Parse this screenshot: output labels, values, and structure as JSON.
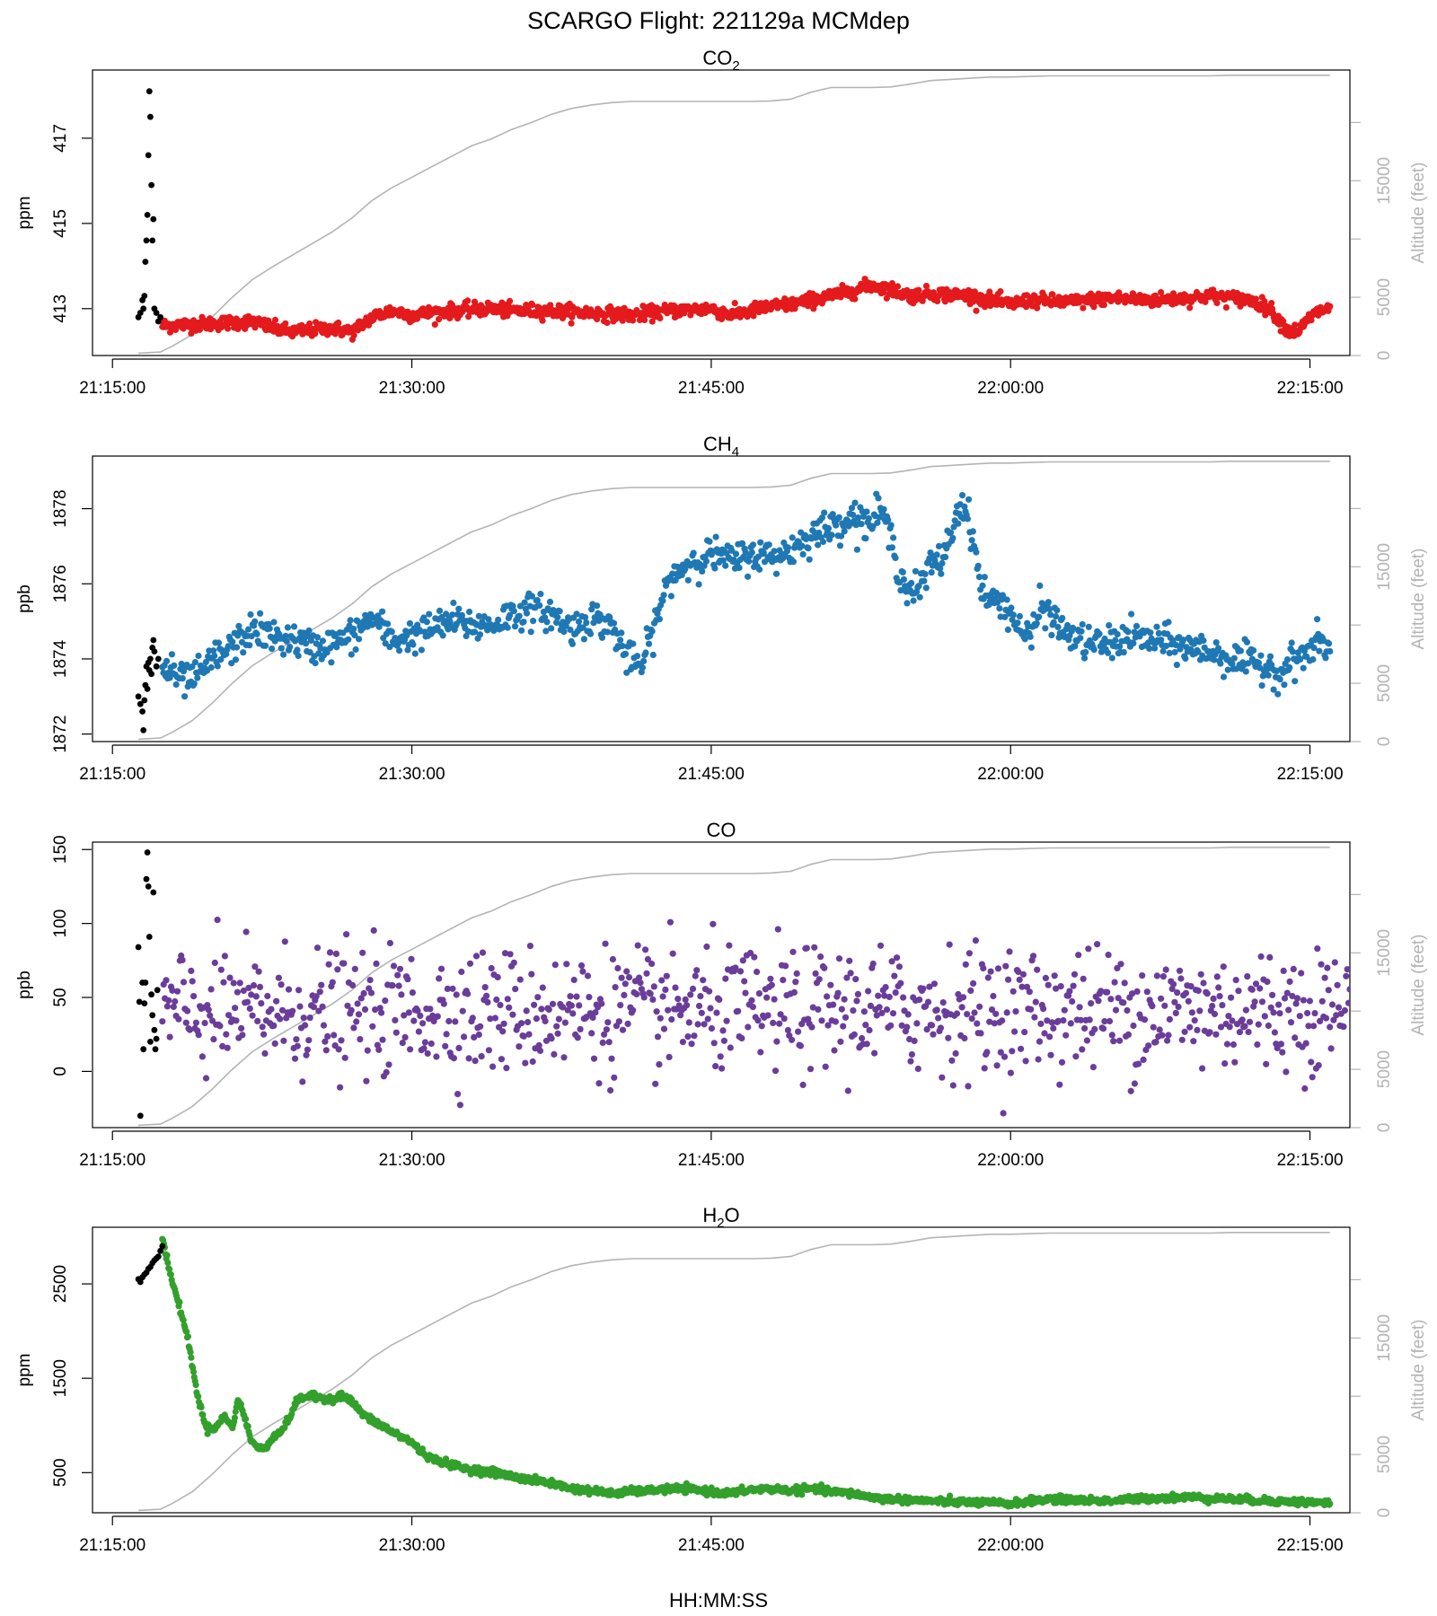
{
  "figure": {
    "title": "SCARGO Flight: 221129a  MCMdep",
    "xlabel": "HH:MM:SS"
  },
  "colors": {
    "axis": "#000000",
    "altitude": "#b4b4b4",
    "ground_points": "#000000"
  },
  "chart_data": [
    {
      "type": "scatter",
      "title_base": "CO",
      "title_sub": "2",
      "ylabel": "ppm",
      "ylim": [
        411.9,
        418.6
      ],
      "yticks": [
        413,
        415,
        417
      ],
      "y2label": "Altitude (feet)",
      "y2lim": [
        0,
        24500
      ],
      "y2ticks": [
        0,
        5000,
        15000
      ],
      "xlim_minutes": [
        -1,
        62
      ],
      "xticks": [
        "21:15:00",
        "21:30:00",
        "21:45:00",
        "22:00:00",
        "22:15:00"
      ],
      "xticks_minutes": [
        0,
        15,
        30,
        45,
        60
      ],
      "series_color": "#e41a1c",
      "ground": {
        "t": [
          1.3,
          1.4,
          1.5,
          1.55,
          1.6,
          1.65,
          1.7,
          1.75,
          1.8,
          1.85,
          1.9,
          1.95,
          2.0,
          2.05,
          2.1,
          2.2,
          2.3,
          2.4
        ],
        "y": [
          412.8,
          412.9,
          413.2,
          413.0,
          413.3,
          414.1,
          414.6,
          415.2,
          416.6,
          418.1,
          417.5,
          415.9,
          414.6,
          415.1,
          413.0,
          412.9,
          412.7,
          412.8
        ]
      },
      "main": {
        "anchors": [
          [
            2.5,
            412.6
          ],
          [
            5,
            412.65
          ],
          [
            7,
            412.7
          ],
          [
            8,
            412.55
          ],
          [
            9,
            412.45
          ],
          [
            10,
            412.5
          ],
          [
            11,
            412.55
          ],
          [
            12,
            412.45
          ],
          [
            13,
            412.8
          ],
          [
            14,
            412.95
          ],
          [
            15,
            412.85
          ],
          [
            17,
            412.95
          ],
          [
            19,
            413.0
          ],
          [
            20,
            412.95
          ],
          [
            22,
            412.95
          ],
          [
            24,
            412.9
          ],
          [
            26,
            412.85
          ],
          [
            28,
            412.95
          ],
          [
            30,
            413.0
          ],
          [
            31,
            412.85
          ],
          [
            33,
            413.05
          ],
          [
            34,
            413.1
          ],
          [
            35,
            413.2
          ],
          [
            36,
            413.3
          ],
          [
            37,
            413.4
          ],
          [
            38,
            413.55
          ],
          [
            39,
            413.45
          ],
          [
            40,
            413.3
          ],
          [
            41,
            413.35
          ],
          [
            43,
            413.3
          ],
          [
            44,
            413.2
          ],
          [
            45,
            413.1
          ],
          [
            46,
            413.2
          ],
          [
            48,
            413.15
          ],
          [
            50,
            413.25
          ],
          [
            52,
            413.2
          ],
          [
            54,
            413.25
          ],
          [
            55,
            413.3
          ],
          [
            56,
            413.25
          ],
          [
            57,
            413.2
          ],
          [
            58,
            413.0
          ],
          [
            58.5,
            412.7
          ],
          [
            59,
            412.45
          ],
          [
            59.5,
            412.5
          ],
          [
            60,
            412.8
          ],
          [
            60.5,
            412.95
          ],
          [
            61,
            413.0
          ]
        ],
        "noise": 0.08,
        "count": 1500
      }
    },
    {
      "type": "scatter",
      "title_base": "CH",
      "title_sub": "4",
      "ylabel": "ppb",
      "ylim": [
        1871.8,
        1879.4
      ],
      "yticks": [
        1872,
        1874,
        1876,
        1878
      ],
      "y2label": "Altitude (feet)",
      "y2lim": [
        0,
        24500
      ],
      "y2ticks": [
        0,
        5000,
        15000
      ],
      "xlim_minutes": [
        -1,
        62
      ],
      "xticks": [
        "21:15:00",
        "21:30:00",
        "21:45:00",
        "22:00:00",
        "22:15:00"
      ],
      "xticks_minutes": [
        0,
        15,
        30,
        45,
        60
      ],
      "series_color": "#1f78b4",
      "ground": {
        "t": [
          1.3,
          1.4,
          1.5,
          1.55,
          1.6,
          1.65,
          1.7,
          1.75,
          1.8,
          1.85,
          1.9,
          1.95,
          2.0,
          2.05,
          2.1,
          2.2,
          2.3
        ],
        "y": [
          1873.0,
          1872.8,
          1872.6,
          1872.1,
          1872.9,
          1873.3,
          1873.8,
          1873.2,
          1873.9,
          1873.7,
          1874.0,
          1873.6,
          1874.3,
          1874.5,
          1874.2,
          1873.8,
          1874.0
        ]
      },
      "main": {
        "anchors": [
          [
            2.5,
            1873.8
          ],
          [
            3.5,
            1873.4
          ],
          [
            4.5,
            1873.6
          ],
          [
            5,
            1874.0
          ],
          [
            6,
            1874.3
          ],
          [
            7,
            1874.8
          ],
          [
            8,
            1874.6
          ],
          [
            9,
            1874.5
          ],
          [
            10,
            1874.3
          ],
          [
            11,
            1874.4
          ],
          [
            12,
            1874.6
          ],
          [
            13,
            1875.1
          ],
          [
            14,
            1874.5
          ],
          [
            15,
            1874.6
          ],
          [
            16,
            1874.8
          ],
          [
            17,
            1875.0
          ],
          [
            18,
            1874.9
          ],
          [
            19,
            1874.9
          ],
          [
            20,
            1875.2
          ],
          [
            21,
            1875.3
          ],
          [
            22,
            1875.2
          ],
          [
            23,
            1874.8
          ],
          [
            24,
            1875.1
          ],
          [
            25,
            1874.9
          ],
          [
            25.8,
            1874.0
          ],
          [
            26.5,
            1873.8
          ],
          [
            27,
            1874.6
          ],
          [
            27.5,
            1875.5
          ],
          [
            28,
            1876.2
          ],
          [
            29,
            1876.6
          ],
          [
            30,
            1876.8
          ],
          [
            31,
            1876.6
          ],
          [
            32,
            1876.8
          ],
          [
            33,
            1876.7
          ],
          [
            34,
            1876.9
          ],
          [
            35,
            1877.3
          ],
          [
            36,
            1877.5
          ],
          [
            37,
            1877.8
          ],
          [
            38,
            1877.6
          ],
          [
            38.5,
            1878.0
          ],
          [
            39,
            1877.2
          ],
          [
            39.5,
            1876.2
          ],
          [
            40,
            1875.8
          ],
          [
            40.5,
            1875.9
          ],
          [
            41,
            1876.5
          ],
          [
            41.5,
            1876.6
          ],
          [
            42,
            1877.3
          ],
          [
            42.5,
            1878.2
          ],
          [
            43,
            1877.6
          ],
          [
            43.5,
            1875.9
          ],
          [
            44,
            1875.5
          ],
          [
            44.5,
            1875.6
          ],
          [
            45,
            1875.2
          ],
          [
            45.5,
            1874.8
          ],
          [
            46,
            1874.5
          ],
          [
            46.5,
            1875.4
          ],
          [
            47,
            1875.2
          ],
          [
            47.5,
            1874.8
          ],
          [
            48,
            1874.6
          ],
          [
            49,
            1874.4
          ],
          [
            50,
            1874.4
          ],
          [
            51,
            1874.6
          ],
          [
            52,
            1874.5
          ],
          [
            53,
            1874.4
          ],
          [
            54,
            1874.3
          ],
          [
            55,
            1874.2
          ],
          [
            56,
            1874.0
          ],
          [
            57,
            1873.9
          ],
          [
            58,
            1873.8
          ],
          [
            58.5,
            1873.6
          ],
          [
            59,
            1873.9
          ],
          [
            60,
            1874.2
          ],
          [
            60.5,
            1874.5
          ],
          [
            61,
            1874.2
          ]
        ],
        "noise": 0.22,
        "count": 1100
      }
    },
    {
      "type": "scatter",
      "title_base": "CO",
      "title_sub": "",
      "ylabel": "ppb",
      "ylim": [
        -38,
        155
      ],
      "yticks": [
        0,
        50,
        100,
        150
      ],
      "y2label": "Altitude (feet)",
      "y2lim": [
        0,
        24500
      ],
      "y2ticks": [
        0,
        5000,
        15000
      ],
      "xlim_minutes": [
        -1,
        62
      ],
      "xticks": [
        "21:15:00",
        "21:30:00",
        "21:45:00",
        "22:00:00",
        "22:15:00"
      ],
      "xticks_minutes": [
        0,
        15,
        30,
        45,
        60
      ],
      "series_color": "#6a3d9a",
      "ground": {
        "t": [
          1.3,
          1.35,
          1.4,
          1.5,
          1.55,
          1.6,
          1.65,
          1.7,
          1.75,
          1.8,
          1.85,
          1.9,
          1.95,
          2.0,
          2.05,
          2.1,
          2.15,
          2.2,
          2.25
        ],
        "y": [
          84,
          47,
          -30,
          60,
          15,
          46,
          60,
          130,
          148,
          125,
          91,
          20,
          52,
          38,
          121,
          28,
          15,
          22,
          55
        ]
      },
      "main": {
        "anchors": [
          [
            2.5,
            40
          ],
          [
            62,
            42
          ]
        ],
        "noise": 21,
        "count": 950
      }
    },
    {
      "type": "scatter",
      "title_base": "H",
      "title_sub": "2",
      "title_suffix": "O",
      "ylabel": "ppm",
      "ylim": [
        75,
        3100
      ],
      "yticks": [
        500,
        1500,
        2500
      ],
      "y2label": "Altitude (feet)",
      "y2lim": [
        0,
        24500
      ],
      "y2ticks": [
        0,
        5000,
        15000
      ],
      "xlim_minutes": [
        -1,
        62
      ],
      "xticks": [
        "21:15:00",
        "21:30:00",
        "21:45:00",
        "22:00:00",
        "22:15:00"
      ],
      "xticks_minutes": [
        0,
        15,
        30,
        45,
        60
      ],
      "series_color": "#33a02c",
      "ground": {
        "t": [
          1.3,
          1.4,
          1.5,
          1.6,
          1.7,
          1.8,
          1.9,
          2.0,
          2.1,
          2.2,
          2.3,
          2.4,
          2.5
        ],
        "y": [
          2550,
          2520,
          2570,
          2600,
          2620,
          2660,
          2680,
          2720,
          2750,
          2770,
          2790,
          2850,
          2900
        ]
      },
      "main": {
        "anchors": [
          [
            2.5,
            3000
          ],
          [
            2.9,
            2600
          ],
          [
            3.5,
            2150
          ],
          [
            3.8,
            1900
          ],
          [
            4.1,
            1500
          ],
          [
            4.4,
            1200
          ],
          [
            4.7,
            970
          ],
          [
            5.2,
            980
          ],
          [
            5.6,
            1100
          ],
          [
            6.0,
            980
          ],
          [
            6.3,
            1280
          ],
          [
            6.6,
            1100
          ],
          [
            7.0,
            820
          ],
          [
            7.4,
            750
          ],
          [
            7.7,
            760
          ],
          [
            8.0,
            880
          ],
          [
            8.5,
            950
          ],
          [
            8.8,
            1050
          ],
          [
            9.0,
            1150
          ],
          [
            9.3,
            1280
          ],
          [
            9.8,
            1310
          ],
          [
            10.5,
            1290
          ],
          [
            11.0,
            1280
          ],
          [
            11.5,
            1320
          ],
          [
            12.0,
            1250
          ],
          [
            12.5,
            1130
          ],
          [
            13.0,
            1050
          ],
          [
            13.5,
            1000
          ],
          [
            14.0,
            930
          ],
          [
            14.5,
            880
          ],
          [
            15.0,
            820
          ],
          [
            15.5,
            720
          ],
          [
            16.0,
            650
          ],
          [
            17.0,
            580
          ],
          [
            18.0,
            530
          ],
          [
            19.0,
            510
          ],
          [
            20.0,
            460
          ],
          [
            21.0,
            420
          ],
          [
            22.0,
            390
          ],
          [
            23.0,
            330
          ],
          [
            24.0,
            310
          ],
          [
            25.0,
            280
          ],
          [
            26.0,
            300
          ],
          [
            27.0,
            310
          ],
          [
            28.0,
            330
          ],
          [
            29.0,
            320
          ],
          [
            30.0,
            300
          ],
          [
            31.0,
            280
          ],
          [
            32.0,
            320
          ],
          [
            33.0,
            330
          ],
          [
            34.0,
            310
          ],
          [
            35.0,
            330
          ],
          [
            36.0,
            300
          ],
          [
            37.0,
            280
          ],
          [
            38.0,
            240
          ],
          [
            39.0,
            220
          ],
          [
            40.0,
            210
          ],
          [
            42.0,
            190
          ],
          [
            44.0,
            180
          ],
          [
            45.0,
            170
          ],
          [
            46.0,
            200
          ],
          [
            47.0,
            220
          ],
          [
            48.0,
            210
          ],
          [
            50.0,
            200
          ],
          [
            52.0,
            230
          ],
          [
            54.0,
            240
          ],
          [
            56.0,
            220
          ],
          [
            58.0,
            200
          ],
          [
            60.0,
            185
          ],
          [
            61.0,
            180
          ]
        ],
        "noise": 18,
        "count": 1500
      }
    }
  ],
  "altitude_profile": {
    "t": [
      1.3,
      2.4,
      3.0,
      4.0,
      5.0,
      6.0,
      7.0,
      8.0,
      9.0,
      10.0,
      11.0,
      12.0,
      13.0,
      14.0,
      15.0,
      16.0,
      17.0,
      18.0,
      19.0,
      20.0,
      21.0,
      22.0,
      23.0,
      24.0,
      25.0,
      26.0,
      27.0,
      28.0,
      29.0,
      30.0,
      31.0,
      32.0,
      33.0,
      34.0,
      35.0,
      36.0,
      37.0,
      38.0,
      39.0,
      40.0,
      41.0,
      42.0,
      43.0,
      44.0,
      45.0,
      46.0,
      47.0,
      48.0,
      49.0,
      50.0,
      51.0,
      52.0,
      53.0,
      54.0,
      55.0,
      56.0,
      57.0,
      58.0,
      59.0,
      60.0,
      61.0
    ],
    "alt": [
      200,
      300,
      800,
      1800,
      3300,
      5000,
      6500,
      7600,
      8600,
      9600,
      10600,
      11800,
      13300,
      14400,
      15300,
      16200,
      17100,
      18000,
      18600,
      19400,
      20000,
      20700,
      21200,
      21500,
      21700,
      21800,
      21800,
      21800,
      21800,
      21800,
      21800,
      21800,
      21850,
      22000,
      22600,
      23000,
      23000,
      23000,
      23050,
      23300,
      23600,
      23700,
      23800,
      23900,
      23900,
      23950,
      24000,
      24000,
      24000,
      24000,
      24000,
      24000,
      24000,
      24000,
      24000,
      24050,
      24050,
      24050,
      24050,
      24050,
      24050
    ]
  }
}
